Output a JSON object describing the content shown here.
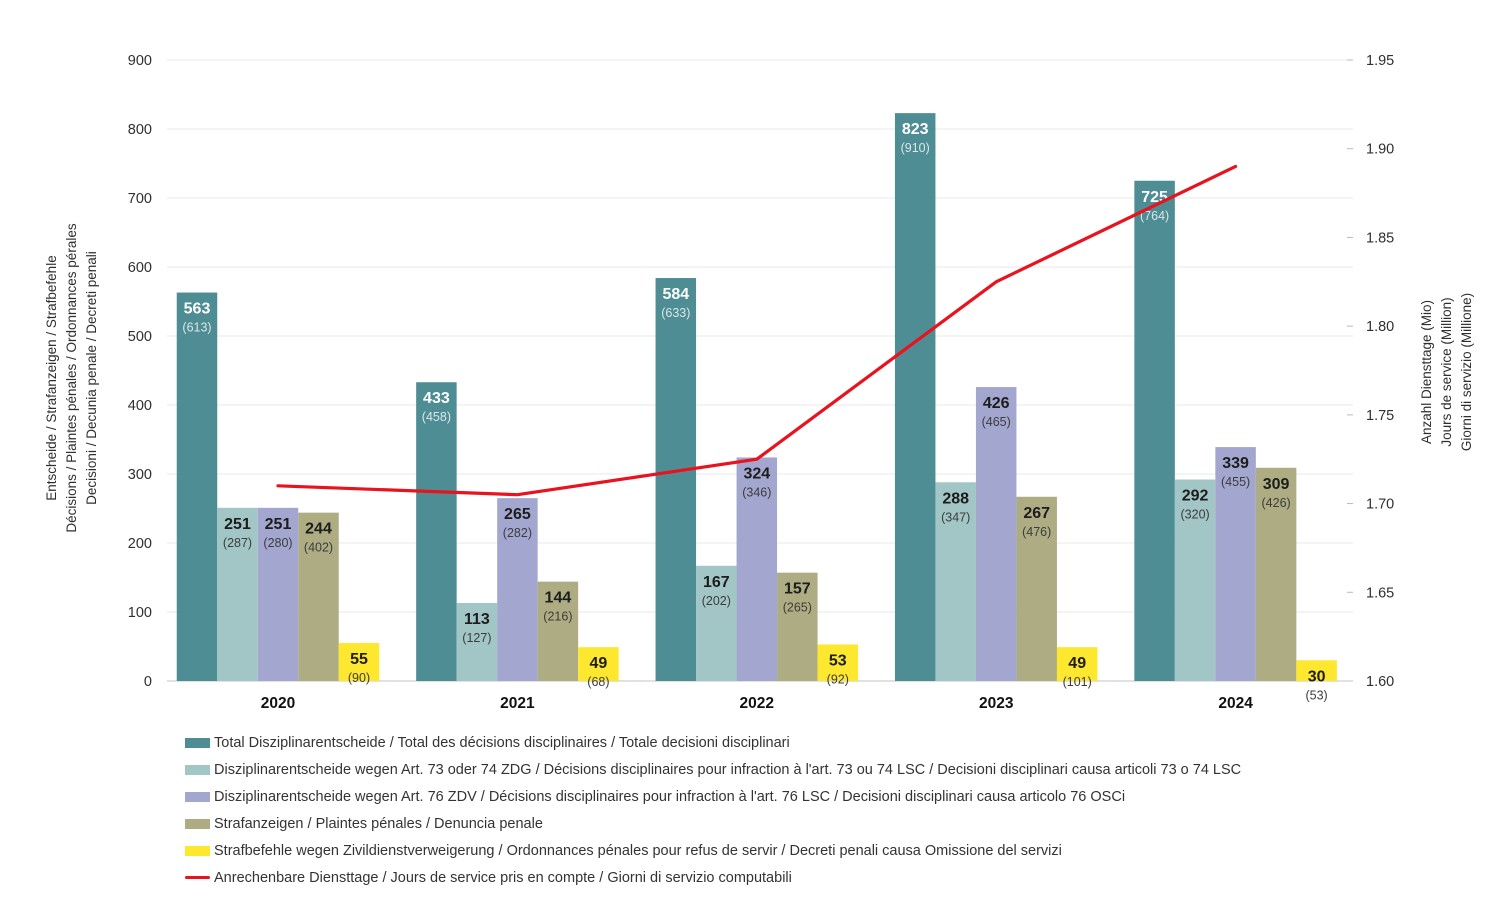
{
  "chart_data": {
    "type": "grouped-bar+line",
    "categories": [
      "2020",
      "2021",
      "2022",
      "2023",
      "2024"
    ],
    "bar_series": [
      {
        "name": "Total Disziplinarentscheide / Total des décisions disciplinaires / Totale decisioni disciplinari",
        "color": "#4f8d95",
        "label_color": "#ffffff",
        "secondary_label_color": "#d8e6e8",
        "values": [
          563,
          433,
          584,
          823,
          725
        ],
        "secondary_values": [
          613,
          458,
          633,
          910,
          764
        ]
      },
      {
        "name": "Disziplinarentscheide wegen Art. 73 oder 74 ZDG / Décisions disciplinaires pour infraction à l'art. 73 ou 74 LSC / Decisioni disciplinari causa articoli 73 o 74 LSC",
        "color": "#a2c5c6",
        "label_color": "#1d1d1d",
        "secondary_label_color": "#3c3c3c",
        "values": [
          251,
          113,
          167,
          288,
          292
        ],
        "secondary_values": [
          287,
          127,
          202,
          347,
          320
        ]
      },
      {
        "name": "Disziplinarentscheide wegen Art. 76 ZDV / Décisions disciplinaires pour infraction à l'art. 76 LSC / Decisioni disciplinari causa articolo 76 OSCi",
        "color": "#a3a7d0",
        "label_color": "#1d1d1d",
        "secondary_label_color": "#3c3c3c",
        "values": [
          251,
          265,
          324,
          426,
          339
        ],
        "secondary_values": [
          280,
          282,
          346,
          465,
          455
        ]
      },
      {
        "name": "Strafanzeigen / Plaintes pénales / Denuncia penale",
        "color": "#aeac82",
        "label_color": "#1d1d1d",
        "secondary_label_color": "#3c3c3c",
        "values": [
          244,
          144,
          157,
          267,
          309
        ],
        "secondary_values": [
          402,
          216,
          265,
          476,
          426
        ]
      },
      {
        "name": "Strafbefehle wegen Zivildienstverweigerung / Ordonnances pénales pour refus de servir / Decreti penali causa Omissione del servizi",
        "color": "#fde72f",
        "label_color": "#1d1d1d",
        "secondary_label_color": "#3c3c3c",
        "values": [
          55,
          49,
          53,
          49,
          30
        ],
        "secondary_values": [
          90,
          68,
          92,
          101,
          53
        ]
      }
    ],
    "line_series": {
      "name": "Anrechenbare Diensttage / Jours de service pris en compte / Giorni di servizio computabili",
      "color": "#e8131e",
      "values": [
        1.71,
        1.705,
        1.725,
        1.825,
        1.89
      ]
    },
    "left_axis": {
      "min": 0,
      "max": 900,
      "step": 100,
      "title_lines": [
        "Entscheide / Strafanzeigen / Strafbefehle",
        "Décisions / Plaintes pénales / Ordonnances pérales",
        "Decisioni / Decunia penale / Decreti penali"
      ]
    },
    "right_axis": {
      "min": 1.6,
      "max": 1.95,
      "step": 0.05,
      "decimals": 2,
      "title_lines": [
        "Anzahl Diensttage (Mio)",
        "Jours de service (Million)",
        "Giorni di servizio (Millione)"
      ]
    },
    "grid": true,
    "legend_position": "bottom-left"
  }
}
